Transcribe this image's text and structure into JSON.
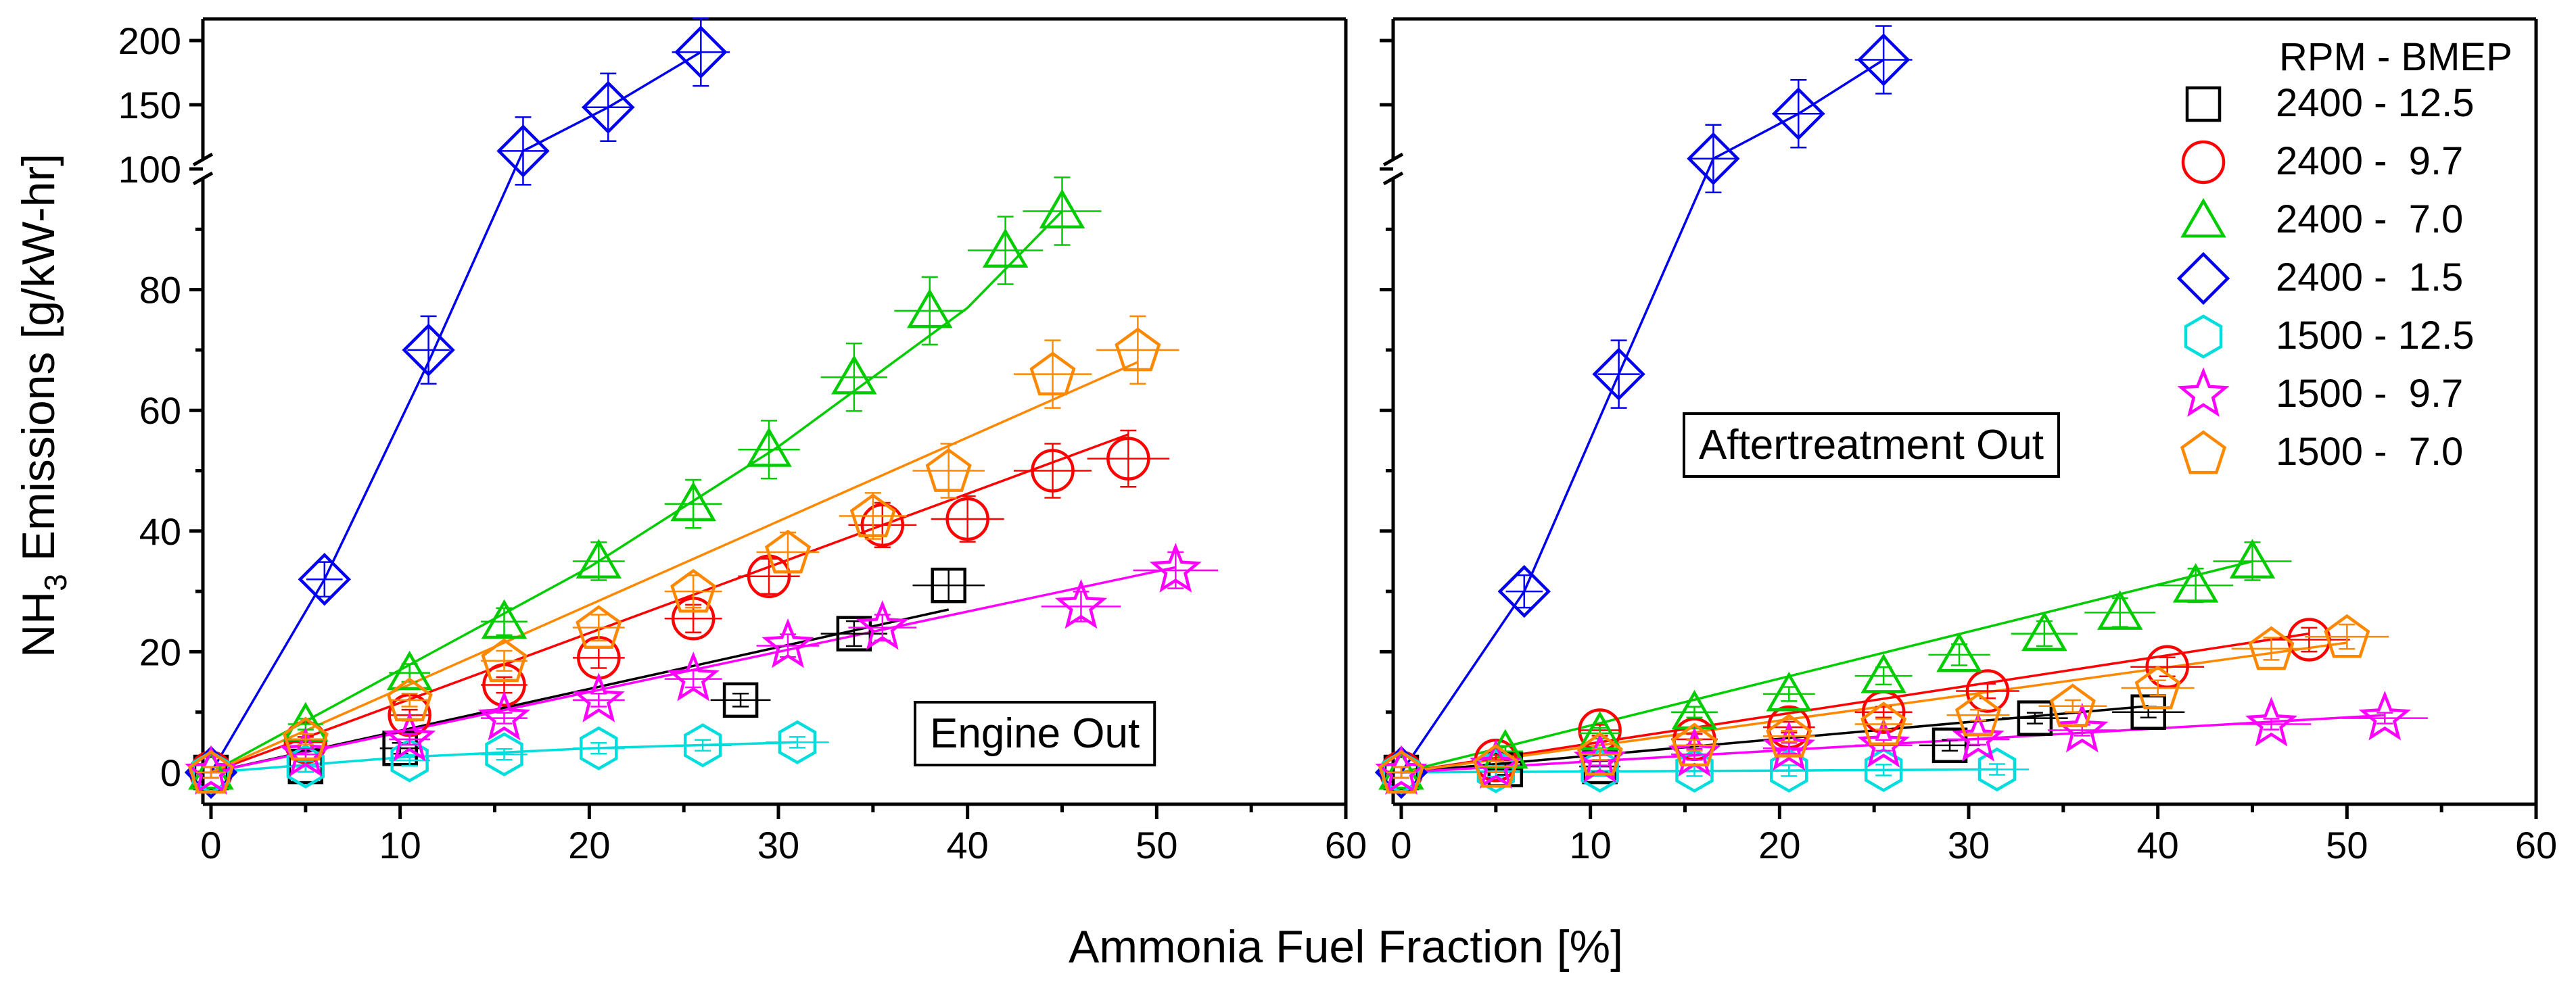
{
  "chart_data": {
    "type": "scatter",
    "y_axis_title": {
      "prefix": "NH",
      "subscript": "3",
      "suffix": " Emissions [g/kW-hr]"
    },
    "x_axis_title": "Ammonia Fuel Fraction [%]",
    "x_range": [
      0,
      60
    ],
    "x_ticks": [
      "0",
      "10",
      "20",
      "30",
      "40",
      "50",
      "60"
    ],
    "y_lower_range": [
      0,
      100
    ],
    "y_lower_ticks": [
      "0",
      "20",
      "40",
      "60",
      "80",
      "100"
    ],
    "y_upper_range": [
      100,
      200
    ],
    "y_upper_ticks": [
      "150",
      "200"
    ],
    "legend": {
      "title": "RPM - BMEP",
      "entries": [
        {
          "label": "2400 - 12.5",
          "series": "s2400_12_5"
        },
        {
          "label": "2400 -  9.7",
          "series": "s2400_9_7"
        },
        {
          "label": "2400 -  7.0",
          "series": "s2400_7_0"
        },
        {
          "label": "2400 -  1.5",
          "series": "s2400_1_5"
        },
        {
          "label": "1500 - 12.5",
          "series": "s1500_12_5"
        },
        {
          "label": "1500 -  9.7",
          "series": "s1500_9_7"
        },
        {
          "label": "1500 -  7.0",
          "series": "s1500_7_0"
        }
      ]
    },
    "series": [
      {
        "id": "s2400_12_5",
        "name": "2400 - 12.5",
        "marker": "square",
        "color": "#000000"
      },
      {
        "id": "s2400_9_7",
        "name": "2400 - 9.7",
        "marker": "circle",
        "color": "#ff0000"
      },
      {
        "id": "s2400_7_0",
        "name": "2400 - 7.0",
        "marker": "triangle",
        "color": "#00cc00"
      },
      {
        "id": "s2400_1_5",
        "name": "2400 - 1.5",
        "marker": "diamond",
        "color": "#0000ee"
      },
      {
        "id": "s1500_12_5",
        "name": "1500 - 12.5",
        "marker": "hexagon",
        "color": "#00dddd"
      },
      {
        "id": "s1500_9_7",
        "name": "1500 - 9.7",
        "marker": "star",
        "color": "#ff00ff"
      },
      {
        "id": "s1500_7_0",
        "name": "1500 - 7.0",
        "marker": "pentagon",
        "color": "#ff8800"
      }
    ],
    "panels": [
      {
        "label": "Engine Out",
        "data": {
          "s2400_12_5": {
            "x": [
              0,
              5,
              10,
              28,
              34,
              39
            ],
            "y": [
              0,
              1,
              4,
              12,
              23,
              31
            ],
            "fit": [
              [
                0,
                0
              ],
              [
                39,
                27
              ]
            ]
          },
          "s2400_9_7": {
            "x": [
              0,
              5,
              10.5,
              15.5,
              20.5,
              25.5,
              29.5,
              35.5,
              40,
              44.5,
              48.5
            ],
            "y": [
              0,
              5,
              9.5,
              14.5,
              19,
              25.5,
              32.5,
              41,
              42,
              50,
              52
            ],
            "fit": [
              [
                0,
                0
              ],
              [
                48.5,
                56
              ]
            ]
          },
          "s2400_7_0": {
            "x": [
              0,
              5,
              10.5,
              15.5,
              20.5,
              25.5,
              29.5,
              34,
              38,
              42,
              45
            ],
            "y": [
              0,
              8,
              16.5,
              25,
              35,
              44.5,
              53.5,
              65.5,
              76.5,
              86.5,
              93
            ],
            "fit": [
              [
                0,
                0
              ],
              [
                10,
                17
              ],
              [
                20,
                34
              ],
              [
                30,
                54
              ],
              [
                40,
                77
              ],
              [
                45,
                93
              ]
            ]
          },
          "s2400_1_5": {
            "x": [
              0,
              6,
              11.5,
              16.5,
              21,
              25.9
            ],
            "y": [
              0,
              32,
              70,
              114,
              148,
              191
            ],
            "fit": [
              [
                0,
                0
              ],
              [
                6,
                32
              ],
              [
                11.5,
                68
              ],
              [
                16.5,
                114
              ],
              [
                21,
                148
              ],
              [
                25.9,
                191
              ]
            ]
          },
          "s1500_12_5": {
            "x": [
              0,
              5,
              10.5,
              15.5,
              20.5,
              26,
              31
            ],
            "y": [
              0,
              1,
              2,
              3,
              4,
              4.5,
              5
            ],
            "fit": [
              [
                0,
                0
              ],
              [
                10,
                2.5
              ],
              [
                20,
                4
              ],
              [
                31,
                5
              ]
            ]
          },
          "s1500_9_7": {
            "x": [
              0,
              5,
              10.5,
              15.5,
              20.5,
              25.5,
              30.5,
              35.5,
              46,
              51
            ],
            "y": [
              0,
              3,
              5.5,
              9,
              12,
              15.5,
              21,
              24,
              27.5,
              33.5
            ],
            "fit": [
              [
                0,
                0
              ],
              [
                51,
                34
              ]
            ]
          },
          "s1500_7_0": {
            "x": [
              0,
              5,
              10.5,
              15.5,
              20.5,
              25.5,
              30.5,
              35,
              39,
              44.5,
              49
            ],
            "y": [
              0,
              5.5,
              12,
              18.5,
              24,
              30,
              36.5,
              42.5,
              50,
              66,
              70
            ],
            "fit": [
              [
                0,
                0
              ],
              [
                49,
                68
              ]
            ]
          }
        }
      },
      {
        "label": "Aftertreatment Out",
        "data": {
          "s2400_12_5": {
            "x": [
              0,
              5.5,
              10.5,
              29,
              33.5,
              39.5
            ],
            "y": [
              0,
              0.5,
              1,
              4.5,
              9,
              10
            ],
            "fit": [
              [
                0,
                0
              ],
              [
                39.5,
                11
              ]
            ]
          },
          "s2400_9_7": {
            "x": [
              0,
              5,
              10.5,
              15.5,
              20.5,
              25.5,
              31,
              40.5,
              48
            ],
            "y": [
              0,
              2,
              7,
              5.5,
              7.5,
              10,
              13.5,
              17.5,
              22
            ],
            "fit": [
              [
                0,
                0
              ],
              [
                48,
                23
              ]
            ]
          },
          "s2400_7_0": {
            "x": [
              0,
              5.5,
              10.5,
              15.5,
              20.5,
              25.5,
              29.5,
              34,
              38,
              42,
              45
            ],
            "y": [
              0,
              3.5,
              6.5,
              10,
              13,
              16,
              19.5,
              23,
              26.5,
              31,
              35
            ],
            "fit": [
              [
                0,
                0
              ],
              [
                45,
                35
              ]
            ]
          },
          "s2400_1_5": {
            "x": [
              0,
              6.5,
              11.5,
              16.5,
              21,
              25.5
            ],
            "y": [
              0,
              30,
              66,
              108,
              143,
              185
            ],
            "fit": [
              [
                0,
                0
              ],
              [
                6.5,
                30
              ],
              [
                11.5,
                66
              ],
              [
                16.5,
                108
              ],
              [
                21,
                143
              ],
              [
                25.5,
                185
              ]
            ]
          },
          "s1500_12_5": {
            "x": [
              0,
              5,
              10.5,
              15.5,
              20.5,
              25.5,
              31.5
            ],
            "y": [
              0,
              0.2,
              0.3,
              0.3,
              0.3,
              0.4,
              0.5
            ],
            "fit": [
              [
                0,
                0
              ],
              [
                31.5,
                0.5
              ]
            ]
          },
          "s1500_9_7": {
            "x": [
              0,
              5,
              10.5,
              15.5,
              20.5,
              25.5,
              30.5,
              36,
              46,
              52
            ],
            "y": [
              0,
              1,
              2,
              3,
              4,
              4.5,
              5.5,
              7,
              8,
              9
            ],
            "fit": [
              [
                0,
                0
              ],
              [
                52,
                9.5
              ]
            ]
          },
          "s1500_7_0": {
            "x": [
              0,
              5,
              10.5,
              15.5,
              20.5,
              25.5,
              30.5,
              35.5,
              40,
              46,
              50
            ],
            "y": [
              0,
              1,
              3,
              4.5,
              6,
              8,
              9.5,
              11,
              14,
              20.5,
              22.5
            ],
            "fit": [
              [
                0,
                0
              ],
              [
                50,
                21.5
              ]
            ]
          }
        }
      }
    ]
  }
}
